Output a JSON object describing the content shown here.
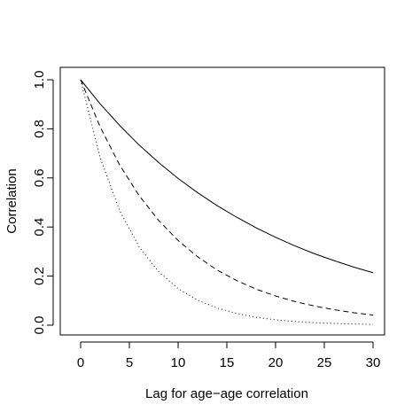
{
  "chart_data": {
    "type": "line",
    "title": "",
    "xlabel": "Lag for age−age correlation",
    "ylabel": "Correlation",
    "xlim": [
      0,
      30
    ],
    "ylim": [
      0.0,
      1.0
    ],
    "xticks": [
      0,
      5,
      10,
      15,
      20,
      25,
      30
    ],
    "xtick_labels": [
      "0",
      "5",
      "10",
      "15",
      "20",
      "25",
      "30"
    ],
    "yticks": [
      0.0,
      0.2,
      0.4,
      0.6,
      0.8,
      1.0
    ],
    "ytick_labels": [
      "0.0",
      "0.2",
      "0.4",
      "0.6",
      "0.8",
      "1.0"
    ],
    "grid": false,
    "legend": "none",
    "x": [
      0,
      2,
      4,
      6,
      8,
      10,
      12,
      14,
      16,
      18,
      20,
      22,
      24,
      26,
      28,
      30
    ],
    "series": [
      {
        "line_style": "solid",
        "color": "#000000",
        "values": [
          1.0,
          0.902,
          0.814,
          0.734,
          0.663,
          0.598,
          0.54,
          0.487,
          0.44,
          0.397,
          0.358,
          0.323,
          0.291,
          0.263,
          0.237,
          0.214
        ]
      },
      {
        "line_style": "dashed",
        "color": "#000000",
        "values": [
          1.0,
          0.808,
          0.653,
          0.528,
          0.427,
          0.345,
          0.279,
          0.225,
          0.182,
          0.147,
          0.119,
          0.096,
          0.078,
          0.063,
          0.051,
          0.041
        ]
      },
      {
        "line_style": "dotted",
        "color": "#000000",
        "values": [
          1.0,
          0.683,
          0.467,
          0.319,
          0.218,
          0.149,
          0.102,
          0.07,
          0.048,
          0.032,
          0.022,
          0.015,
          0.01,
          0.007,
          0.005,
          0.003
        ]
      }
    ]
  }
}
